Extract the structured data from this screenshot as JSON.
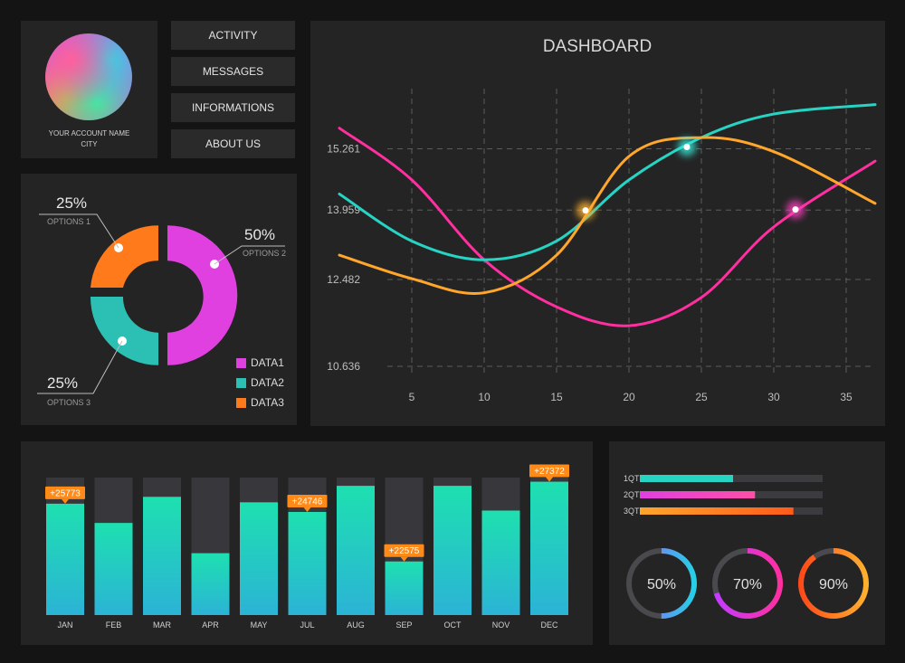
{
  "account": {
    "name": "YOUR ACCOUNT NAME",
    "city": "CITY"
  },
  "menu": [
    {
      "label": "ACTIVITY"
    },
    {
      "label": "MESSAGES"
    },
    {
      "label": "INFORMATIONS"
    },
    {
      "label": "ABOUT US"
    }
  ],
  "donut": {
    "segments": [
      {
        "percent": "25%",
        "option": "OPTIONS 1",
        "value": 25,
        "color": "#ff7a1a"
      },
      {
        "percent": "50%",
        "option": "OPTIONS 2",
        "value": 50,
        "color": "#e040e0"
      },
      {
        "percent": "25%",
        "option": "OPTIONS 3",
        "value": 25,
        "color": "#2cc0b4"
      }
    ],
    "legend": [
      {
        "label": "DATA1",
        "color": "#e040e0"
      },
      {
        "label": "DATA2",
        "color": "#2cc0b4"
      },
      {
        "label": "DATA3",
        "color": "#ff7a1a"
      }
    ]
  },
  "chart_data": [
    {
      "type": "line",
      "title": "DASHBOARD",
      "x_ticks": [
        5,
        10,
        15,
        20,
        25,
        30,
        35
      ],
      "y_ticks": [
        10.636,
        12.482,
        13.959,
        15.261
      ],
      "grid": true,
      "xlim": [
        0,
        37
      ],
      "series": [
        {
          "color": "#ff2fa0",
          "x": [
            0,
            5,
            10,
            15,
            20,
            25,
            30,
            37
          ],
          "y": [
            15.7,
            14.6,
            12.9,
            11.9,
            11.5,
            12.1,
            13.6,
            15.0
          ]
        },
        {
          "color": "#27d4c3",
          "x": [
            0,
            5,
            10,
            15,
            20,
            25,
            30,
            37
          ],
          "y": [
            14.3,
            13.3,
            12.9,
            13.3,
            14.6,
            15.5,
            16.0,
            16.2
          ]
        },
        {
          "color": "#ffa62b",
          "x": [
            0,
            5,
            10,
            15,
            20,
            25,
            30,
            37
          ],
          "y": [
            13.0,
            12.5,
            12.2,
            13.0,
            15.1,
            15.5,
            15.2,
            14.1
          ]
        }
      ],
      "highlights": [
        {
          "x": 17,
          "y": 13.95,
          "color": "#ffb02e"
        },
        {
          "x": 24,
          "y": 15.3,
          "color": "#38e8d8"
        },
        {
          "x": 31.5,
          "y": 13.97,
          "color": "#ff3fbf"
        }
      ]
    },
    {
      "type": "bar",
      "categories": [
        "JAN",
        "FEB",
        "MAR",
        "APR",
        "MAY",
        "JUL",
        "AUG",
        "SEP",
        "OCT",
        "NOV",
        "DEC"
      ],
      "values": [
        0.81,
        0.67,
        0.86,
        0.45,
        0.82,
        0.75,
        0.94,
        0.39,
        0.94,
        0.76,
        0.97
      ],
      "ylim": [
        0,
        1
      ],
      "annotations": [
        {
          "category": "JAN",
          "label": "+25773"
        },
        {
          "category": "JUL",
          "label": "+24746"
        },
        {
          "category": "SEP",
          "label": "+22575"
        },
        {
          "category": "DEC",
          "label": "+27372"
        }
      ]
    }
  ],
  "progress": [
    {
      "label": "1QT",
      "value": 0.51,
      "start": "#27d4c3",
      "end": "#27d4c3"
    },
    {
      "label": "2QT",
      "value": 0.63,
      "start": "#e040e0",
      "end": "#ff4fa8"
    },
    {
      "label": "3QT",
      "value": 0.84,
      "start": "#ffa62b",
      "end": "#ff5a1a"
    }
  ],
  "rings": [
    {
      "label": "50%",
      "value": 0.5,
      "start": "#26d0e6",
      "end": "#9a5cff"
    },
    {
      "label": "70%",
      "value": 0.7,
      "start": "#ff2fa0",
      "end": "#c23cff"
    },
    {
      "label": "90%",
      "value": 0.9,
      "start": "#ffb02e",
      "end": "#ff4a18"
    }
  ]
}
